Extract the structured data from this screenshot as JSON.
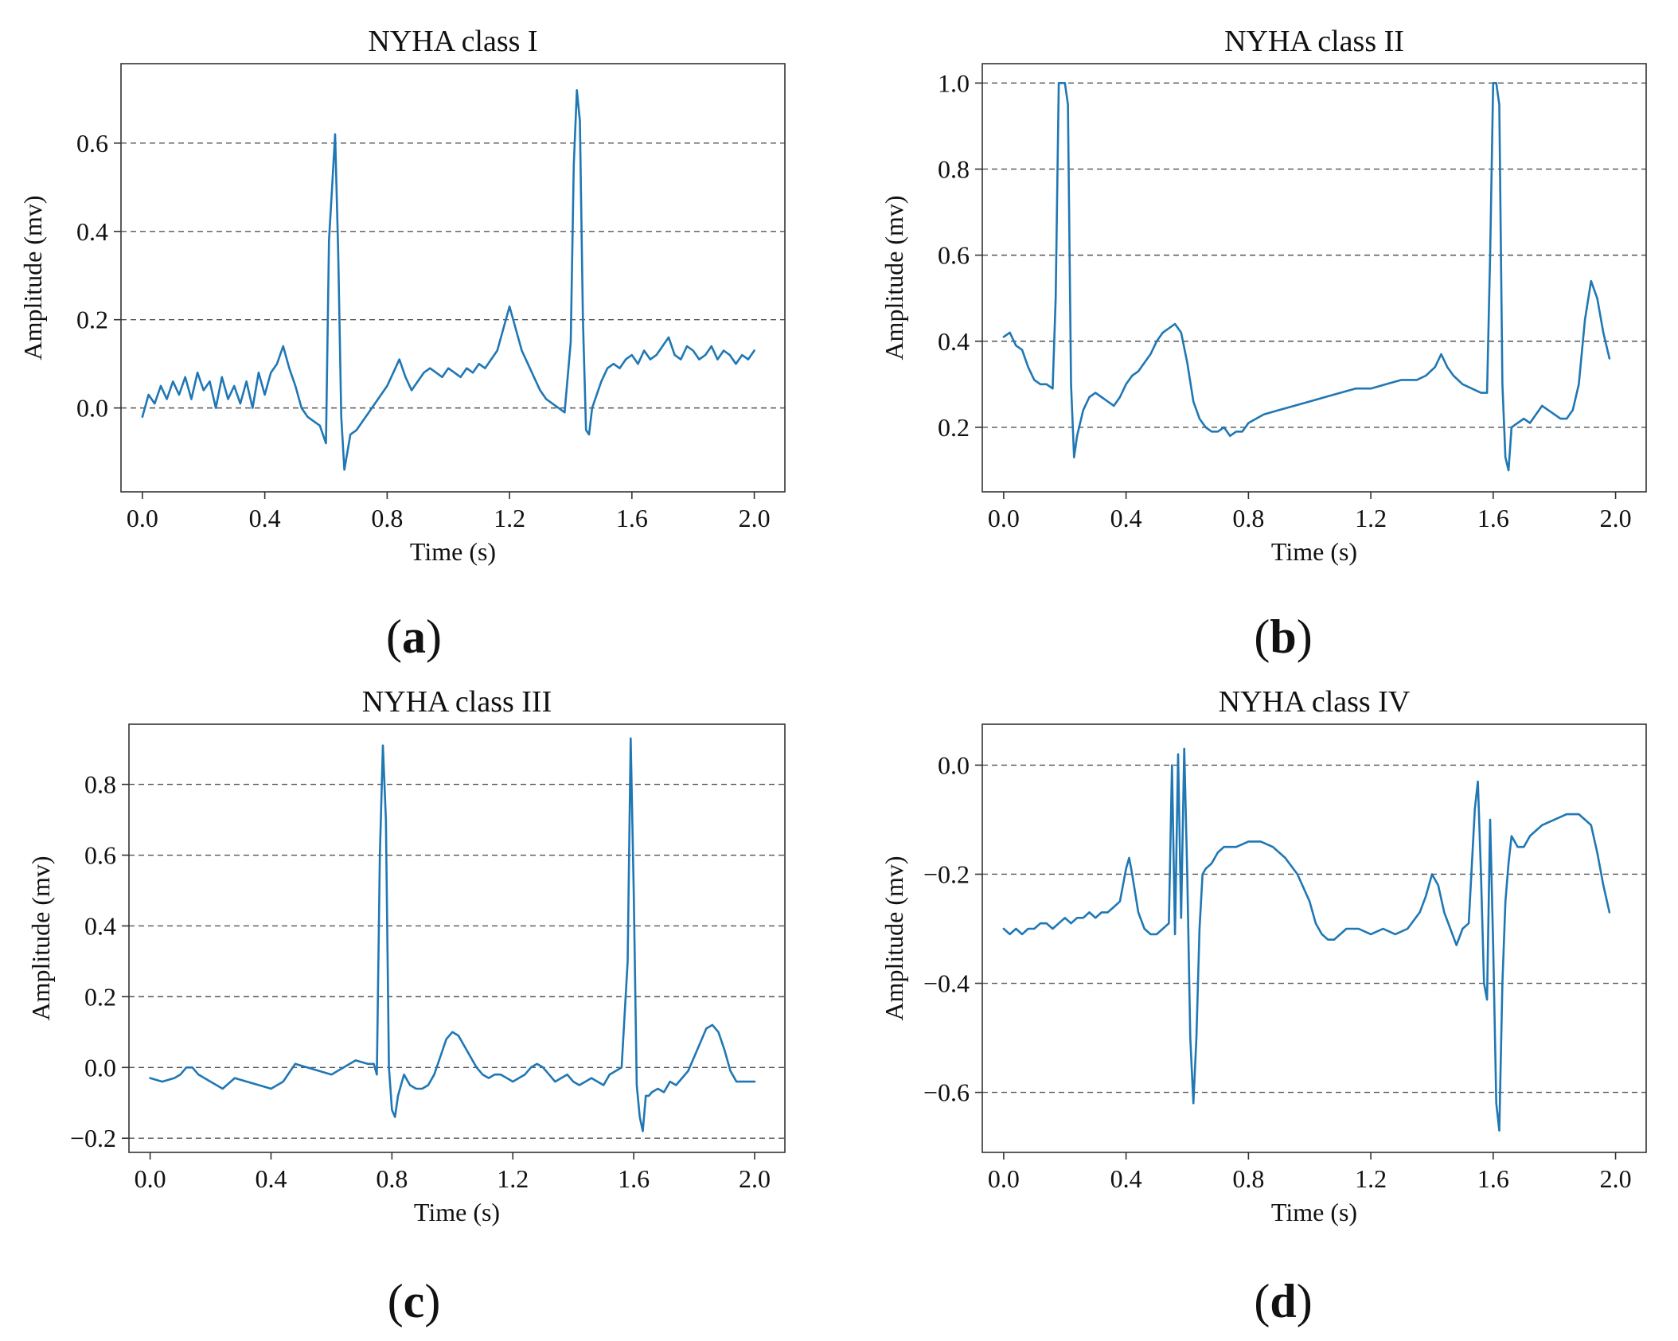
{
  "figure": {
    "panel_labels": [
      "a",
      "b",
      "c",
      "d"
    ]
  },
  "style": {
    "line_color": "#1f77b4",
    "grid_color": "#555555"
  },
  "chart_data": [
    {
      "type": "line",
      "title": "NYHA class I",
      "xlabel": "Time (s)",
      "ylabel": "Amplitude (mv)",
      "xlim": [
        -0.07,
        2.1
      ],
      "ylim": [
        -0.19,
        0.78
      ],
      "xticks": [
        0.0,
        0.4,
        0.8,
        1.2,
        1.6,
        2.0
      ],
      "xtick_labels": [
        "0.0",
        "0.4",
        "0.8",
        "1.2",
        "1.6",
        "2.0"
      ],
      "yticks": [
        0.0,
        0.2,
        0.4,
        0.6
      ],
      "ytick_labels": [
        "0.0",
        "0.2",
        "0.4",
        "0.6"
      ],
      "grid": "horizontal dashed",
      "series": [
        {
          "x": [
            0.0,
            0.02,
            0.04,
            0.06,
            0.08,
            0.1,
            0.12,
            0.14,
            0.16,
            0.18,
            0.2,
            0.22,
            0.24,
            0.26,
            0.28,
            0.3,
            0.32,
            0.34,
            0.36,
            0.38,
            0.4,
            0.42,
            0.44,
            0.46,
            0.48,
            0.5,
            0.52,
            0.54,
            0.56,
            0.58,
            0.6,
            0.61,
            0.62,
            0.63,
            0.64,
            0.65,
            0.66,
            0.67,
            0.68,
            0.7,
            0.72,
            0.74,
            0.76,
            0.78,
            0.8,
            0.82,
            0.84,
            0.86,
            0.88,
            0.9,
            0.92,
            0.94,
            0.96,
            0.98,
            1.0,
            1.02,
            1.04,
            1.06,
            1.08,
            1.1,
            1.12,
            1.14,
            1.16,
            1.18,
            1.2,
            1.22,
            1.24,
            1.26,
            1.28,
            1.3,
            1.32,
            1.34,
            1.36,
            1.38,
            1.4,
            1.41,
            1.42,
            1.43,
            1.44,
            1.45,
            1.46,
            1.47,
            1.48,
            1.5,
            1.52,
            1.54,
            1.56,
            1.58,
            1.6,
            1.62,
            1.64,
            1.66,
            1.68,
            1.7,
            1.72,
            1.74,
            1.76,
            1.78,
            1.8,
            1.82,
            1.84,
            1.86,
            1.88,
            1.9,
            1.92,
            1.94,
            1.96,
            1.98,
            2.0
          ],
          "y": [
            -0.02,
            0.03,
            0.01,
            0.05,
            0.02,
            0.06,
            0.03,
            0.07,
            0.02,
            0.08,
            0.04,
            0.06,
            0.0,
            0.07,
            0.02,
            0.05,
            0.01,
            0.06,
            0.0,
            0.08,
            0.03,
            0.08,
            0.1,
            0.14,
            0.09,
            0.05,
            0.0,
            -0.02,
            -0.03,
            -0.04,
            -0.08,
            0.38,
            0.5,
            0.62,
            0.35,
            -0.02,
            -0.14,
            -0.1,
            -0.06,
            -0.05,
            -0.03,
            -0.01,
            0.01,
            0.03,
            0.05,
            0.08,
            0.11,
            0.07,
            0.04,
            0.06,
            0.08,
            0.09,
            0.08,
            0.07,
            0.09,
            0.08,
            0.07,
            0.09,
            0.08,
            0.1,
            0.09,
            0.11,
            0.13,
            0.18,
            0.23,
            0.18,
            0.13,
            0.1,
            0.07,
            0.04,
            0.02,
            0.01,
            0.0,
            -0.01,
            0.15,
            0.55,
            0.72,
            0.65,
            0.2,
            -0.05,
            -0.06,
            0.0,
            0.02,
            0.06,
            0.09,
            0.1,
            0.09,
            0.11,
            0.12,
            0.1,
            0.13,
            0.11,
            0.12,
            0.14,
            0.16,
            0.12,
            0.11,
            0.14,
            0.13,
            0.11,
            0.12,
            0.14,
            0.11,
            0.13,
            0.12,
            0.1,
            0.12,
            0.11,
            0.13
          ]
        }
      ]
    },
    {
      "type": "line",
      "title": "NYHA class II",
      "xlabel": "Time (s)",
      "ylabel": "Amplitude (mv)",
      "xlim": [
        -0.07,
        2.1
      ],
      "ylim": [
        0.05,
        1.045
      ],
      "xticks": [
        0.0,
        0.4,
        0.8,
        1.2,
        1.6,
        2.0
      ],
      "xtick_labels": [
        "0.0",
        "0.4",
        "0.8",
        "1.2",
        "1.6",
        "2.0"
      ],
      "yticks": [
        0.2,
        0.4,
        0.6,
        0.8,
        1.0
      ],
      "ytick_labels": [
        "0.2",
        "0.4",
        "0.6",
        "0.8",
        "1.0"
      ],
      "grid": "horizontal dashed",
      "series": [
        {
          "x": [
            0.0,
            0.02,
            0.04,
            0.06,
            0.08,
            0.1,
            0.12,
            0.14,
            0.16,
            0.17,
            0.18,
            0.19,
            0.2,
            0.21,
            0.22,
            0.23,
            0.24,
            0.26,
            0.28,
            0.3,
            0.32,
            0.34,
            0.36,
            0.38,
            0.4,
            0.42,
            0.44,
            0.46,
            0.48,
            0.5,
            0.52,
            0.54,
            0.56,
            0.58,
            0.6,
            0.62,
            0.64,
            0.66,
            0.68,
            0.7,
            0.72,
            0.74,
            0.76,
            0.78,
            0.8,
            0.85,
            0.9,
            0.95,
            1.0,
            1.05,
            1.1,
            1.15,
            1.2,
            1.25,
            1.3,
            1.35,
            1.38,
            1.41,
            1.43,
            1.45,
            1.47,
            1.5,
            1.53,
            1.56,
            1.58,
            1.59,
            1.6,
            1.61,
            1.62,
            1.63,
            1.64,
            1.65,
            1.66,
            1.68,
            1.7,
            1.72,
            1.74,
            1.76,
            1.78,
            1.8,
            1.82,
            1.84,
            1.86,
            1.88,
            1.9,
            1.92,
            1.94,
            1.96,
            1.98
          ],
          "y": [
            0.41,
            0.42,
            0.39,
            0.38,
            0.34,
            0.31,
            0.3,
            0.3,
            0.29,
            0.5,
            1.0,
            1.0,
            1.0,
            0.95,
            0.3,
            0.13,
            0.18,
            0.24,
            0.27,
            0.28,
            0.27,
            0.26,
            0.25,
            0.27,
            0.3,
            0.32,
            0.33,
            0.35,
            0.37,
            0.4,
            0.42,
            0.43,
            0.44,
            0.42,
            0.35,
            0.26,
            0.22,
            0.2,
            0.19,
            0.19,
            0.2,
            0.18,
            0.19,
            0.19,
            0.21,
            0.23,
            0.24,
            0.25,
            0.26,
            0.27,
            0.28,
            0.29,
            0.29,
            0.3,
            0.31,
            0.31,
            0.32,
            0.34,
            0.37,
            0.34,
            0.32,
            0.3,
            0.29,
            0.28,
            0.28,
            0.6,
            1.0,
            1.0,
            0.95,
            0.3,
            0.13,
            0.1,
            0.2,
            0.21,
            0.22,
            0.21,
            0.23,
            0.25,
            0.24,
            0.23,
            0.22,
            0.22,
            0.24,
            0.3,
            0.45,
            0.54,
            0.5,
            0.42,
            0.36
          ]
        }
      ]
    },
    {
      "type": "line",
      "title": "NYHA class III",
      "xlabel": "Time (s)",
      "ylabel": "Amplitude (mv)",
      "xlim": [
        -0.07,
        2.1
      ],
      "ylim": [
        -0.24,
        0.97
      ],
      "xticks": [
        0.0,
        0.4,
        0.8,
        1.2,
        1.6,
        2.0
      ],
      "xtick_labels": [
        "0.0",
        "0.4",
        "0.8",
        "1.2",
        "1.6",
        "2.0"
      ],
      "yticks": [
        -0.2,
        0.0,
        0.2,
        0.4,
        0.6,
        0.8
      ],
      "ytick_labels": [
        "−0.2",
        "0.0",
        "0.2",
        "0.4",
        "0.6",
        "0.8"
      ],
      "grid": "horizontal dashed",
      "series": [
        {
          "x": [
            0.0,
            0.04,
            0.08,
            0.1,
            0.12,
            0.14,
            0.16,
            0.2,
            0.24,
            0.28,
            0.32,
            0.36,
            0.4,
            0.44,
            0.48,
            0.52,
            0.56,
            0.6,
            0.64,
            0.68,
            0.72,
            0.74,
            0.75,
            0.76,
            0.77,
            0.78,
            0.79,
            0.8,
            0.81,
            0.82,
            0.84,
            0.86,
            0.88,
            0.9,
            0.92,
            0.94,
            0.96,
            0.98,
            1.0,
            1.02,
            1.04,
            1.06,
            1.08,
            1.1,
            1.12,
            1.14,
            1.16,
            1.18,
            1.2,
            1.22,
            1.24,
            1.26,
            1.28,
            1.3,
            1.32,
            1.34,
            1.36,
            1.38,
            1.4,
            1.42,
            1.44,
            1.46,
            1.48,
            1.5,
            1.52,
            1.54,
            1.56,
            1.58,
            1.59,
            1.6,
            1.61,
            1.62,
            1.63,
            1.64,
            1.65,
            1.66,
            1.68,
            1.7,
            1.72,
            1.74,
            1.76,
            1.78,
            1.8,
            1.82,
            1.84,
            1.86,
            1.88,
            1.9,
            1.92,
            1.94,
            1.96,
            1.98,
            2.0
          ],
          "y": [
            -0.03,
            -0.04,
            -0.03,
            -0.02,
            0.0,
            0.0,
            -0.02,
            -0.04,
            -0.06,
            -0.03,
            -0.04,
            -0.05,
            -0.06,
            -0.04,
            0.01,
            0.0,
            -0.01,
            -0.02,
            0.0,
            0.02,
            0.01,
            0.01,
            -0.02,
            0.6,
            0.91,
            0.7,
            0.0,
            -0.12,
            -0.14,
            -0.08,
            -0.02,
            -0.05,
            -0.06,
            -0.06,
            -0.05,
            -0.02,
            0.03,
            0.08,
            0.1,
            0.09,
            0.06,
            0.03,
            0.0,
            -0.02,
            -0.03,
            -0.02,
            -0.02,
            -0.03,
            -0.04,
            -0.03,
            -0.02,
            0.0,
            0.01,
            0.0,
            -0.02,
            -0.04,
            -0.03,
            -0.02,
            -0.04,
            -0.05,
            -0.04,
            -0.03,
            -0.04,
            -0.05,
            -0.02,
            -0.01,
            0.0,
            0.3,
            0.93,
            0.5,
            -0.05,
            -0.14,
            -0.18,
            -0.08,
            -0.08,
            -0.07,
            -0.06,
            -0.07,
            -0.04,
            -0.05,
            -0.03,
            -0.01,
            0.03,
            0.07,
            0.11,
            0.12,
            0.1,
            0.05,
            -0.01,
            -0.04,
            -0.04,
            -0.04,
            -0.04
          ]
        }
      ]
    },
    {
      "type": "line",
      "title": "NYHA class IV",
      "xlabel": "Time (s)",
      "ylabel": "Amplitude (mv)",
      "xlim": [
        -0.07,
        2.1
      ],
      "ylim": [
        -0.71,
        0.075
      ],
      "xticks": [
        0.0,
        0.4,
        0.8,
        1.2,
        1.6,
        2.0
      ],
      "xtick_labels": [
        "0.0",
        "0.4",
        "0.8",
        "1.2",
        "1.6",
        "2.0"
      ],
      "yticks": [
        -0.6,
        -0.4,
        -0.2,
        0.0
      ],
      "ytick_labels": [
        "−0.6",
        "−0.4",
        "−0.2",
        "0.0"
      ],
      "grid": "horizontal dashed",
      "series": [
        {
          "x": [
            0.0,
            0.02,
            0.04,
            0.06,
            0.08,
            0.1,
            0.12,
            0.14,
            0.16,
            0.18,
            0.2,
            0.22,
            0.24,
            0.26,
            0.28,
            0.3,
            0.32,
            0.34,
            0.36,
            0.38,
            0.4,
            0.41,
            0.42,
            0.44,
            0.46,
            0.48,
            0.5,
            0.52,
            0.54,
            0.55,
            0.56,
            0.57,
            0.58,
            0.59,
            0.6,
            0.61,
            0.62,
            0.63,
            0.64,
            0.65,
            0.66,
            0.68,
            0.7,
            0.72,
            0.74,
            0.76,
            0.8,
            0.84,
            0.88,
            0.92,
            0.96,
            1.0,
            1.02,
            1.04,
            1.06,
            1.08,
            1.1,
            1.12,
            1.16,
            1.2,
            1.24,
            1.28,
            1.32,
            1.36,
            1.38,
            1.4,
            1.42,
            1.44,
            1.46,
            1.48,
            1.5,
            1.52,
            1.54,
            1.55,
            1.56,
            1.57,
            1.58,
            1.59,
            1.6,
            1.61,
            1.62,
            1.63,
            1.64,
            1.65,
            1.66,
            1.68,
            1.7,
            1.72,
            1.74,
            1.76,
            1.8,
            1.84,
            1.88,
            1.9,
            1.92,
            1.94,
            1.96,
            1.98
          ],
          "y": [
            -0.3,
            -0.31,
            -0.3,
            -0.31,
            -0.3,
            -0.3,
            -0.29,
            -0.29,
            -0.3,
            -0.29,
            -0.28,
            -0.29,
            -0.28,
            -0.28,
            -0.27,
            -0.28,
            -0.27,
            -0.27,
            -0.26,
            -0.25,
            -0.19,
            -0.17,
            -0.2,
            -0.27,
            -0.3,
            -0.31,
            -0.31,
            -0.3,
            -0.29,
            0.0,
            -0.31,
            0.02,
            -0.28,
            0.03,
            -0.2,
            -0.5,
            -0.62,
            -0.5,
            -0.3,
            -0.2,
            -0.19,
            -0.18,
            -0.16,
            -0.15,
            -0.15,
            -0.15,
            -0.14,
            -0.14,
            -0.15,
            -0.17,
            -0.2,
            -0.25,
            -0.29,
            -0.31,
            -0.32,
            -0.32,
            -0.31,
            -0.3,
            -0.3,
            -0.31,
            -0.3,
            -0.31,
            -0.3,
            -0.27,
            -0.24,
            -0.2,
            -0.22,
            -0.27,
            -0.3,
            -0.33,
            -0.3,
            -0.29,
            -0.08,
            -0.03,
            -0.2,
            -0.4,
            -0.43,
            -0.1,
            -0.33,
            -0.62,
            -0.67,
            -0.4,
            -0.25,
            -0.18,
            -0.13,
            -0.15,
            -0.15,
            -0.13,
            -0.12,
            -0.11,
            -0.1,
            -0.09,
            -0.09,
            -0.1,
            -0.11,
            -0.16,
            -0.22,
            -0.27
          ]
        }
      ]
    }
  ]
}
